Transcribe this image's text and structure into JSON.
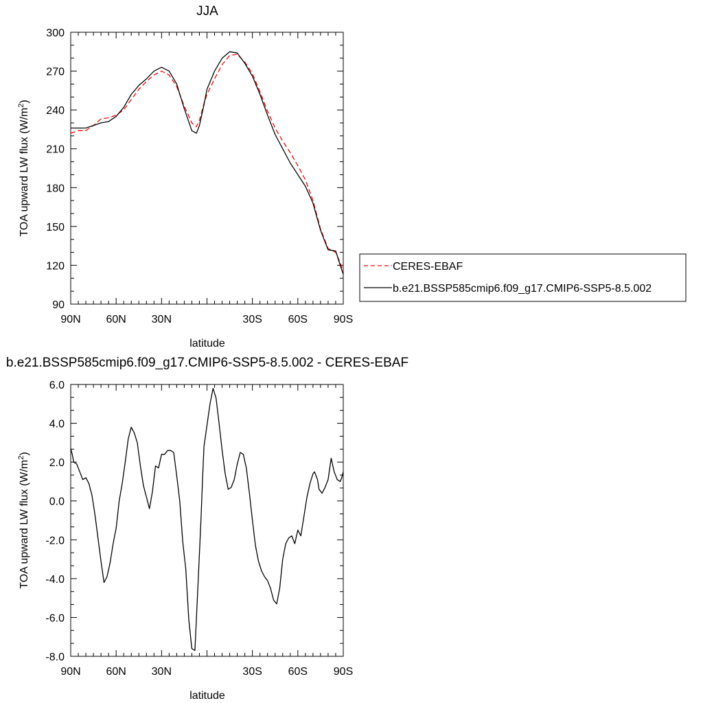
{
  "chart_data": [
    {
      "type": "line",
      "title": "JJA",
      "xlabel": "latitude",
      "ylabel_prefix": "TOA upward LW flux (W/m",
      "ylabel_sup": "2",
      "ylabel_suffix": ")",
      "xlim": [
        90,
        -90
      ],
      "ylim": [
        90,
        300
      ],
      "xticks": [
        {
          "value": 90,
          "label": "90N"
        },
        {
          "value": 60,
          "label": "60N"
        },
        {
          "value": 30,
          "label": "30N"
        },
        {
          "value": -30,
          "label": "30S"
        },
        {
          "value": -60,
          "label": "60S"
        },
        {
          "value": -90,
          "label": "90S"
        }
      ],
      "yticks": [
        {
          "value": 300,
          "label": "300"
        },
        {
          "value": 270,
          "label": "270"
        },
        {
          "value": 240,
          "label": "240"
        },
        {
          "value": 210,
          "label": "210"
        },
        {
          "value": 180,
          "label": "180"
        },
        {
          "value": 150,
          "label": "150"
        },
        {
          "value": 120,
          "label": "120"
        },
        {
          "value": 90,
          "label": "90"
        }
      ],
      "legend_position": "right",
      "series": [
        {
          "name": "CERES-EBAF",
          "color": "#ff0000",
          "dash": "dashed",
          "x": [
            90,
            85,
            80,
            75,
            70,
            65,
            60,
            55,
            50,
            45,
            40,
            35,
            30,
            25,
            20,
            15,
            10,
            7,
            5,
            2,
            0,
            -5,
            -10,
            -15,
            -20,
            -25,
            -30,
            -35,
            -40,
            -45,
            -50,
            -55,
            -60,
            -65,
            -70,
            -75,
            -80,
            -85,
            -88,
            -90
          ],
          "y": [
            222,
            224,
            224,
            228,
            233,
            234,
            236,
            240,
            248,
            256,
            262,
            267,
            270,
            267,
            258,
            243,
            230,
            227,
            232,
            245,
            252,
            264,
            275,
            282,
            283,
            277,
            268,
            254,
            239,
            226,
            216,
            207,
            197,
            186,
            170,
            148,
            133,
            130,
            122,
            115
          ]
        },
        {
          "name": "b.e21.BSSP585cmip6.f09_g17.CMIP6-SSP5-8.5.002",
          "color": "#000000",
          "dash": "solid",
          "x": [
            90,
            85,
            80,
            75,
            70,
            65,
            60,
            55,
            50,
            45,
            40,
            35,
            30,
            25,
            20,
            15,
            10,
            7,
            5,
            2,
            0,
            -5,
            -10,
            -15,
            -20,
            -25,
            -30,
            -35,
            -40,
            -45,
            -50,
            -55,
            -60,
            -65,
            -70,
            -75,
            -80,
            -85,
            -88,
            -90
          ],
          "y": [
            226,
            226,
            226,
            228,
            230,
            231,
            235,
            242,
            252,
            259,
            264,
            270,
            273,
            270,
            260,
            241,
            224,
            222,
            228,
            244,
            256,
            270,
            280,
            285,
            284,
            276,
            266,
            252,
            236,
            221,
            210,
            199,
            190,
            181,
            168,
            147,
            132,
            131,
            120,
            113
          ]
        }
      ]
    },
    {
      "type": "line",
      "title": "b.e21.BSSP585cmip6.f09_g17.CMIP6-SSP5-8.5.002 - CERES-EBAF",
      "xlabel": "latitude",
      "ylabel_prefix": "TOA upward LW flux (W/m",
      "ylabel_sup": "2",
      "ylabel_suffix": ")",
      "xlim": [
        90,
        -90
      ],
      "ylim": [
        -8,
        6
      ],
      "xticks": [
        {
          "value": 90,
          "label": "90N"
        },
        {
          "value": 60,
          "label": "60N"
        },
        {
          "value": 30,
          "label": "30N"
        },
        {
          "value": -30,
          "label": "30S"
        },
        {
          "value": -60,
          "label": "60S"
        },
        {
          "value": -90,
          "label": "90S"
        }
      ],
      "yticks": [
        {
          "value": 6,
          "label": "6.0"
        },
        {
          "value": 4,
          "label": "4.0"
        },
        {
          "value": 2,
          "label": "2.0"
        },
        {
          "value": 0,
          "label": "0.0"
        },
        {
          "value": -2,
          "label": "-2.0"
        },
        {
          "value": -4,
          "label": "-4.0"
        },
        {
          "value": -6,
          "label": "-6.0"
        },
        {
          "value": -8,
          "label": "-8.0"
        }
      ],
      "series": [
        {
          "name": "",
          "color": "#000000",
          "dash": "solid",
          "x": [
            90,
            89,
            88,
            86,
            84,
            82,
            80,
            78,
            76,
            74,
            72,
            70,
            68,
            66,
            64,
            62,
            60,
            58,
            56,
            54,
            52,
            50,
            48,
            46,
            44,
            42,
            40,
            38,
            36,
            34,
            32,
            30,
            28,
            26,
            24,
            22,
            20,
            18,
            16,
            14,
            12,
            10,
            8,
            6,
            4,
            3,
            2,
            0,
            -2,
            -4,
            -6,
            -8,
            -10,
            -12,
            -14,
            -16,
            -18,
            -20,
            -22,
            -24,
            -26,
            -28,
            -30,
            -32,
            -34,
            -36,
            -38,
            -40,
            -42,
            -44,
            -46,
            -48,
            -50,
            -52,
            -54,
            -56,
            -58,
            -60,
            -62,
            -64,
            -66,
            -68,
            -70,
            -71,
            -72,
            -73,
            -74,
            -76,
            -78,
            -80,
            -82,
            -84,
            -86,
            -88,
            -89,
            -90
          ],
          "y": [
            2.7,
            2.4,
            2.0,
            1.9,
            1.5,
            1.1,
            1.2,
            0.9,
            0.3,
            -0.7,
            -1.9,
            -3.1,
            -4.2,
            -3.9,
            -3.2,
            -2.2,
            -1.4,
            0.0,
            0.9,
            2.0,
            3.2,
            3.8,
            3.5,
            3.0,
            1.8,
            0.8,
            0.2,
            -0.4,
            0.5,
            1.8,
            1.7,
            2.4,
            2.4,
            2.6,
            2.6,
            2.5,
            1.3,
            0.0,
            -2.1,
            -3.5,
            -6.1,
            -7.6,
            -7.7,
            -4.4,
            -1.0,
            1.0,
            2.8,
            3.9,
            5.0,
            5.8,
            5.3,
            4.0,
            2.6,
            1.4,
            0.6,
            0.7,
            1.1,
            1.9,
            2.5,
            2.4,
            1.7,
            0.4,
            -1.0,
            -2.3,
            -3.1,
            -3.6,
            -3.9,
            -4.1,
            -4.5,
            -5.1,
            -5.3,
            -4.5,
            -3.0,
            -2.2,
            -1.9,
            -1.8,
            -2.2,
            -1.5,
            -1.8,
            -0.8,
            0.2,
            0.9,
            1.4,
            1.5,
            1.3,
            1.1,
            0.6,
            0.4,
            0.7,
            1.1,
            2.2,
            1.5,
            1.1,
            1.0,
            1.2,
            1.5
          ]
        }
      ]
    }
  ]
}
